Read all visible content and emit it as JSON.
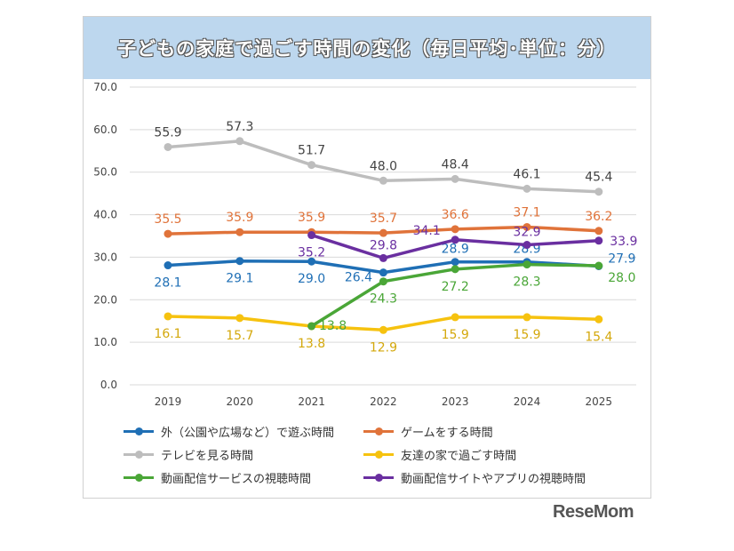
{
  "chart_data": {
    "type": "line",
    "title": "子どもの家庭で過ごす時間の変化（毎日平均･単位：分）",
    "categories": [
      "2019",
      "2020",
      "2021",
      "2022",
      "2023",
      "2024",
      "2025"
    ],
    "ylim": [
      0,
      70
    ],
    "yticks": [
      "0.0",
      "10.0",
      "20.0",
      "30.0",
      "40.0",
      "50.0",
      "60.0",
      "70.0"
    ],
    "grid": true,
    "legend_position": "bottom",
    "series": [
      {
        "name": "外（公園や広場など）で遊ぶ時間",
        "color": "#1f6fb5",
        "values": [
          28.1,
          29.1,
          29.0,
          26.4,
          28.9,
          28.9,
          27.9
        ]
      },
      {
        "name": "ゲームをする時間",
        "color": "#e0733a",
        "values": [
          35.5,
          35.9,
          35.9,
          35.7,
          36.6,
          37.1,
          36.2
        ]
      },
      {
        "name": "テレビを見る時間",
        "color": "#bdbdbd",
        "values": [
          55.9,
          57.3,
          51.7,
          48.0,
          48.4,
          46.1,
          45.4
        ]
      },
      {
        "name": "友達の家で過ごす時間",
        "color": "#f6c20f",
        "values": [
          16.1,
          15.7,
          13.8,
          12.9,
          15.9,
          15.9,
          15.4
        ]
      },
      {
        "name": "動画配信サービスの視聴時間",
        "color": "#4aa637",
        "values": [
          null,
          null,
          13.8,
          24.3,
          27.2,
          28.3,
          28.0
        ]
      },
      {
        "name": "動画配信サイトやアプリの視聴時間",
        "color": "#6a2fa0",
        "values": [
          null,
          null,
          35.2,
          29.8,
          34.1,
          32.9,
          33.9
        ]
      }
    ]
  },
  "logo": "ReseMom"
}
